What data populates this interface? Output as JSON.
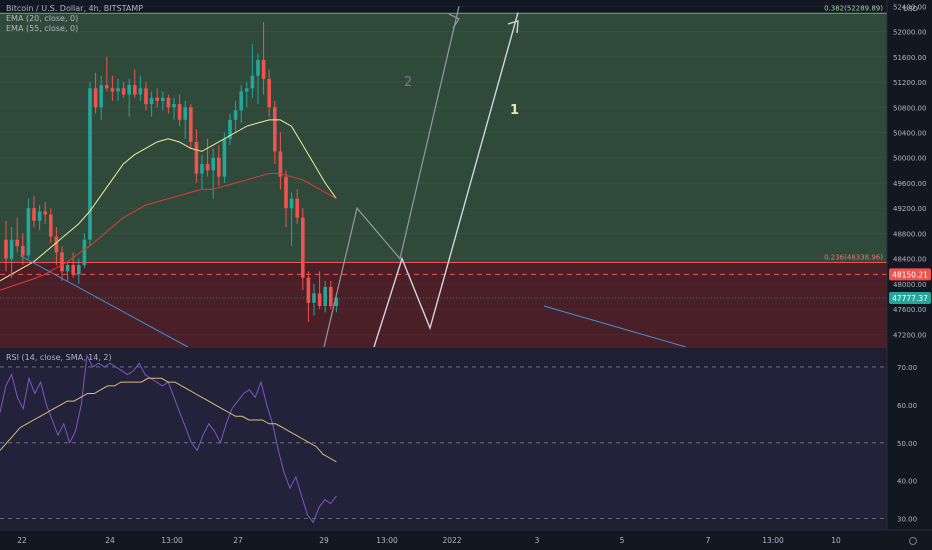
{
  "header": {
    "symbol_line": "Bitcoin / U.S. Dollar, 4h, BITSTAMP",
    "ema20": "EMA (20, close, 0)",
    "ema55": "EMA (55, close, 0)",
    "rsi": "RSI (14, close, SMA, 14, 2)",
    "currency": "USD"
  },
  "colors": {
    "background": "#131722",
    "bull": "#26a69a",
    "bear": "#ef5350",
    "ema20": "#f5eb9b",
    "ema55": "#e53935",
    "rsi": "#7e57c2",
    "rsi_ma": "#e0b97a",
    "green_zone": "#2f4a3a",
    "red_zone": "#4a1f27",
    "rsi_panel": "#1e1f33",
    "fib": "#5db36c",
    "trendline": "#3d8fd1",
    "projection": "#d1d4dc"
  },
  "chart_data": [
    {
      "type": "candlestick",
      "title": "Bitcoin / U.S. Dollar, 4h, BITSTAMP",
      "ylim": [
        47000,
        52500
      ],
      "y_ticks": [
        47200,
        47600,
        48000,
        48400,
        48800,
        49200,
        49600,
        50000,
        50400,
        50800,
        51200,
        51600,
        52000,
        52400
      ],
      "y_tick_labels": [
        "47200.00",
        "47600.00",
        "48000.00",
        "48400.00",
        "48800.00",
        "49200.00",
        "49600.00",
        "50000.00",
        "50400.00",
        "50800.00",
        "51200.00",
        "51600.00",
        "52000.00",
        "52400.00"
      ],
      "x_tick_labels": [
        "22",
        "24",
        "13:00",
        "27",
        "29",
        "13:00",
        "2022",
        "3",
        "5",
        "7",
        "13:00",
        "10"
      ],
      "fib_levels": [
        {
          "ratio": "0.382",
          "price": 52289.89,
          "label": "0.382(52289.89)"
        },
        {
          "ratio": "0.236",
          "price": 48338.96,
          "label": "0.236(48338.96)"
        }
      ],
      "price_markers": [
        {
          "price": 48150.21,
          "label": "48150.21",
          "color": "#ef5350",
          "dashed": true
        },
        {
          "price": 47777.37,
          "label": "47777.37",
          "color": "#26a69a",
          "dashed": false
        }
      ],
      "projection_labels": [
        "2",
        "1"
      ],
      "candles": [
        {
          "o": 48700,
          "h": 49000,
          "l": 48200,
          "c": 48400
        },
        {
          "o": 48400,
          "h": 48900,
          "l": 48100,
          "c": 48700
        },
        {
          "o": 48700,
          "h": 49050,
          "l": 48500,
          "c": 48600
        },
        {
          "o": 48600,
          "h": 48800,
          "l": 48300,
          "c": 48450
        },
        {
          "o": 48450,
          "h": 49350,
          "l": 48400,
          "c": 49200
        },
        {
          "o": 49200,
          "h": 49400,
          "l": 48900,
          "c": 49000
        },
        {
          "o": 49000,
          "h": 49250,
          "l": 48850,
          "c": 49150
        },
        {
          "o": 49150,
          "h": 49300,
          "l": 48950,
          "c": 49100
        },
        {
          "o": 49100,
          "h": 49200,
          "l": 48650,
          "c": 48750
        },
        {
          "o": 48750,
          "h": 48900,
          "l": 48300,
          "c": 48500
        },
        {
          "o": 48500,
          "h": 48600,
          "l": 48050,
          "c": 48200
        },
        {
          "o": 48200,
          "h": 48350,
          "l": 48050,
          "c": 48300
        },
        {
          "o": 48300,
          "h": 48500,
          "l": 48100,
          "c": 48150
        },
        {
          "o": 48150,
          "h": 48400,
          "l": 48000,
          "c": 48300
        },
        {
          "o": 48300,
          "h": 48800,
          "l": 48250,
          "c": 48700
        },
        {
          "o": 48700,
          "h": 51200,
          "l": 48600,
          "c": 51100
        },
        {
          "o": 51100,
          "h": 51350,
          "l": 50700,
          "c": 50800
        },
        {
          "o": 50800,
          "h": 51300,
          "l": 50600,
          "c": 51150
        },
        {
          "o": 51150,
          "h": 51600,
          "l": 51050,
          "c": 51100
        },
        {
          "o": 51100,
          "h": 51300,
          "l": 50900,
          "c": 51050
        },
        {
          "o": 51050,
          "h": 51250,
          "l": 50900,
          "c": 51100
        },
        {
          "o": 51100,
          "h": 51200,
          "l": 50950,
          "c": 51000
        },
        {
          "o": 51000,
          "h": 51250,
          "l": 50650,
          "c": 51150
        },
        {
          "o": 51150,
          "h": 51400,
          "l": 50950,
          "c": 51000
        },
        {
          "o": 51000,
          "h": 51300,
          "l": 50900,
          "c": 51100
        },
        {
          "o": 51100,
          "h": 51200,
          "l": 50750,
          "c": 50850
        },
        {
          "o": 50850,
          "h": 51050,
          "l": 50650,
          "c": 50950
        },
        {
          "o": 50950,
          "h": 51100,
          "l": 50800,
          "c": 50900
        },
        {
          "o": 50900,
          "h": 51050,
          "l": 50750,
          "c": 50950
        },
        {
          "o": 50950,
          "h": 51000,
          "l": 50700,
          "c": 50800
        },
        {
          "o": 50800,
          "h": 50950,
          "l": 50600,
          "c": 50850
        },
        {
          "o": 50850,
          "h": 51000,
          "l": 50500,
          "c": 50600
        },
        {
          "o": 50600,
          "h": 50900,
          "l": 50300,
          "c": 50800
        },
        {
          "o": 50800,
          "h": 50850,
          "l": 50150,
          "c": 50250
        },
        {
          "o": 50250,
          "h": 50450,
          "l": 49600,
          "c": 49750
        },
        {
          "o": 49750,
          "h": 50050,
          "l": 49500,
          "c": 49900
        },
        {
          "o": 49900,
          "h": 50300,
          "l": 49700,
          "c": 49800
        },
        {
          "o": 49800,
          "h": 50150,
          "l": 49350,
          "c": 50000
        },
        {
          "o": 50000,
          "h": 50200,
          "l": 49550,
          "c": 49700
        },
        {
          "o": 49700,
          "h": 50400,
          "l": 49600,
          "c": 50300
        },
        {
          "o": 50300,
          "h": 50700,
          "l": 50200,
          "c": 50600
        },
        {
          "o": 50600,
          "h": 50900,
          "l": 50400,
          "c": 50750
        },
        {
          "o": 50750,
          "h": 51150,
          "l": 50550,
          "c": 51050
        },
        {
          "o": 51050,
          "h": 51200,
          "l": 50800,
          "c": 51100
        },
        {
          "o": 51100,
          "h": 51800,
          "l": 50950,
          "c": 51300
        },
        {
          "o": 51300,
          "h": 51650,
          "l": 50850,
          "c": 51550
        },
        {
          "o": 51550,
          "h": 52150,
          "l": 51000,
          "c": 51250
        },
        {
          "o": 51250,
          "h": 51400,
          "l": 50650,
          "c": 50800
        },
        {
          "o": 50800,
          "h": 50900,
          "l": 49900,
          "c": 50100
        },
        {
          "o": 50100,
          "h": 50400,
          "l": 49500,
          "c": 49700
        },
        {
          "o": 49700,
          "h": 49800,
          "l": 48900,
          "c": 49200
        },
        {
          "o": 49200,
          "h": 49450,
          "l": 48600,
          "c": 49350
        },
        {
          "o": 49350,
          "h": 49500,
          "l": 48950,
          "c": 49050
        },
        {
          "o": 49050,
          "h": 49200,
          "l": 47900,
          "c": 48100
        },
        {
          "o": 48100,
          "h": 48200,
          "l": 47400,
          "c": 47700
        },
        {
          "o": 47700,
          "h": 48000,
          "l": 47500,
          "c": 47850
        },
        {
          "o": 47850,
          "h": 48200,
          "l": 47600,
          "c": 47650
        },
        {
          "o": 47650,
          "h": 48050,
          "l": 47550,
          "c": 47950
        },
        {
          "o": 47950,
          "h": 48050,
          "l": 47600,
          "c": 47650
        },
        {
          "o": 47650,
          "h": 47850,
          "l": 47550,
          "c": 47780
        }
      ],
      "ema20": [
        48050,
        48150,
        48250,
        48350,
        48500,
        48650,
        48800,
        48950,
        49150,
        49400,
        49650,
        49900,
        50050,
        50150,
        50250,
        50300,
        50250,
        50150,
        50100,
        50200,
        50300,
        50400,
        50500,
        50550,
        50600,
        50600,
        50500,
        50200,
        49900,
        49600,
        49350
      ],
      "ema55": [
        47900,
        47960,
        48020,
        48080,
        48150,
        48250,
        48350,
        48480,
        48600,
        48750,
        48900,
        49050,
        49150,
        49250,
        49300,
        49350,
        49400,
        49450,
        49500,
        49500,
        49550,
        49600,
        49650,
        49700,
        49750,
        49750,
        49700,
        49650,
        49550,
        49450,
        49350
      ]
    },
    {
      "type": "line",
      "title": "RSI (14, close, SMA, 14, 2)",
      "ylim": [
        27,
        75
      ],
      "y_ticks": [
        30,
        40,
        50,
        60,
        70
      ],
      "y_tick_labels": [
        "30.00",
        "40.00",
        "50.00",
        "60.00",
        "70.00"
      ],
      "bands": [
        30,
        50,
        70
      ],
      "series": [
        {
          "values": [
            58,
            65,
            68,
            62,
            59,
            67,
            63,
            66,
            60,
            56,
            52,
            55,
            50,
            53,
            60,
            73,
            70,
            71,
            70,
            71,
            70,
            69,
            68,
            69,
            71,
            68,
            67,
            66,
            65,
            66,
            62,
            58,
            54,
            50,
            48,
            52,
            55,
            53,
            50,
            55,
            59,
            61,
            63,
            64,
            62,
            66,
            60,
            55,
            48,
            42,
            38,
            41,
            36,
            31,
            29,
            33,
            35,
            34,
            36
          ]
        },
        {
          "values": [
            48,
            50,
            52,
            54,
            55,
            56,
            57,
            58,
            59,
            60,
            61,
            61,
            62,
            63,
            63,
            64,
            65,
            65,
            66,
            66,
            66,
            66,
            67,
            67,
            67,
            66,
            66,
            65,
            64,
            63,
            62,
            61,
            60,
            59,
            58,
            57,
            57,
            56,
            56,
            56,
            55,
            55,
            54,
            53,
            52,
            51,
            50,
            49,
            47,
            46,
            45
          ]
        }
      ]
    }
  ]
}
